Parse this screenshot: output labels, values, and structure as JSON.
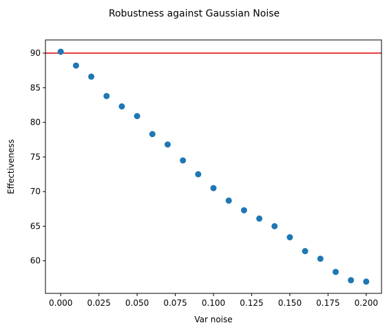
{
  "chart_data": {
    "type": "scatter",
    "title": "Robustness against Gaussian Noise",
    "xlabel": "Var noise",
    "ylabel": "Effectiveness",
    "xlim": [
      -0.01,
      0.21
    ],
    "ylim": [
      55.3,
      91.9
    ],
    "x_ticks": [
      "0.000",
      "0.025",
      "0.050",
      "0.075",
      "0.100",
      "0.125",
      "0.150",
      "0.175",
      "0.200"
    ],
    "y_ticks": [
      "60",
      "65",
      "70",
      "75",
      "80",
      "85",
      "90"
    ],
    "grid": false,
    "series": [
      {
        "color": "#1f77b4",
        "x": [
          0.0,
          0.01,
          0.02,
          0.03,
          0.04,
          0.05,
          0.06,
          0.07,
          0.08,
          0.09,
          0.1,
          0.11,
          0.12,
          0.13,
          0.14,
          0.15,
          0.16,
          0.17,
          0.18,
          0.19,
          0.2
        ],
        "y": [
          90.2,
          88.2,
          86.6,
          83.8,
          82.3,
          80.9,
          78.3,
          76.8,
          74.5,
          72.5,
          70.5,
          68.7,
          67.3,
          66.1,
          65.0,
          63.4,
          61.4,
          60.3,
          58.4,
          57.2,
          57.0
        ]
      }
    ],
    "reference_line": {
      "orientation": "horizontal",
      "y": 90.0,
      "color": "#e00000"
    }
  }
}
